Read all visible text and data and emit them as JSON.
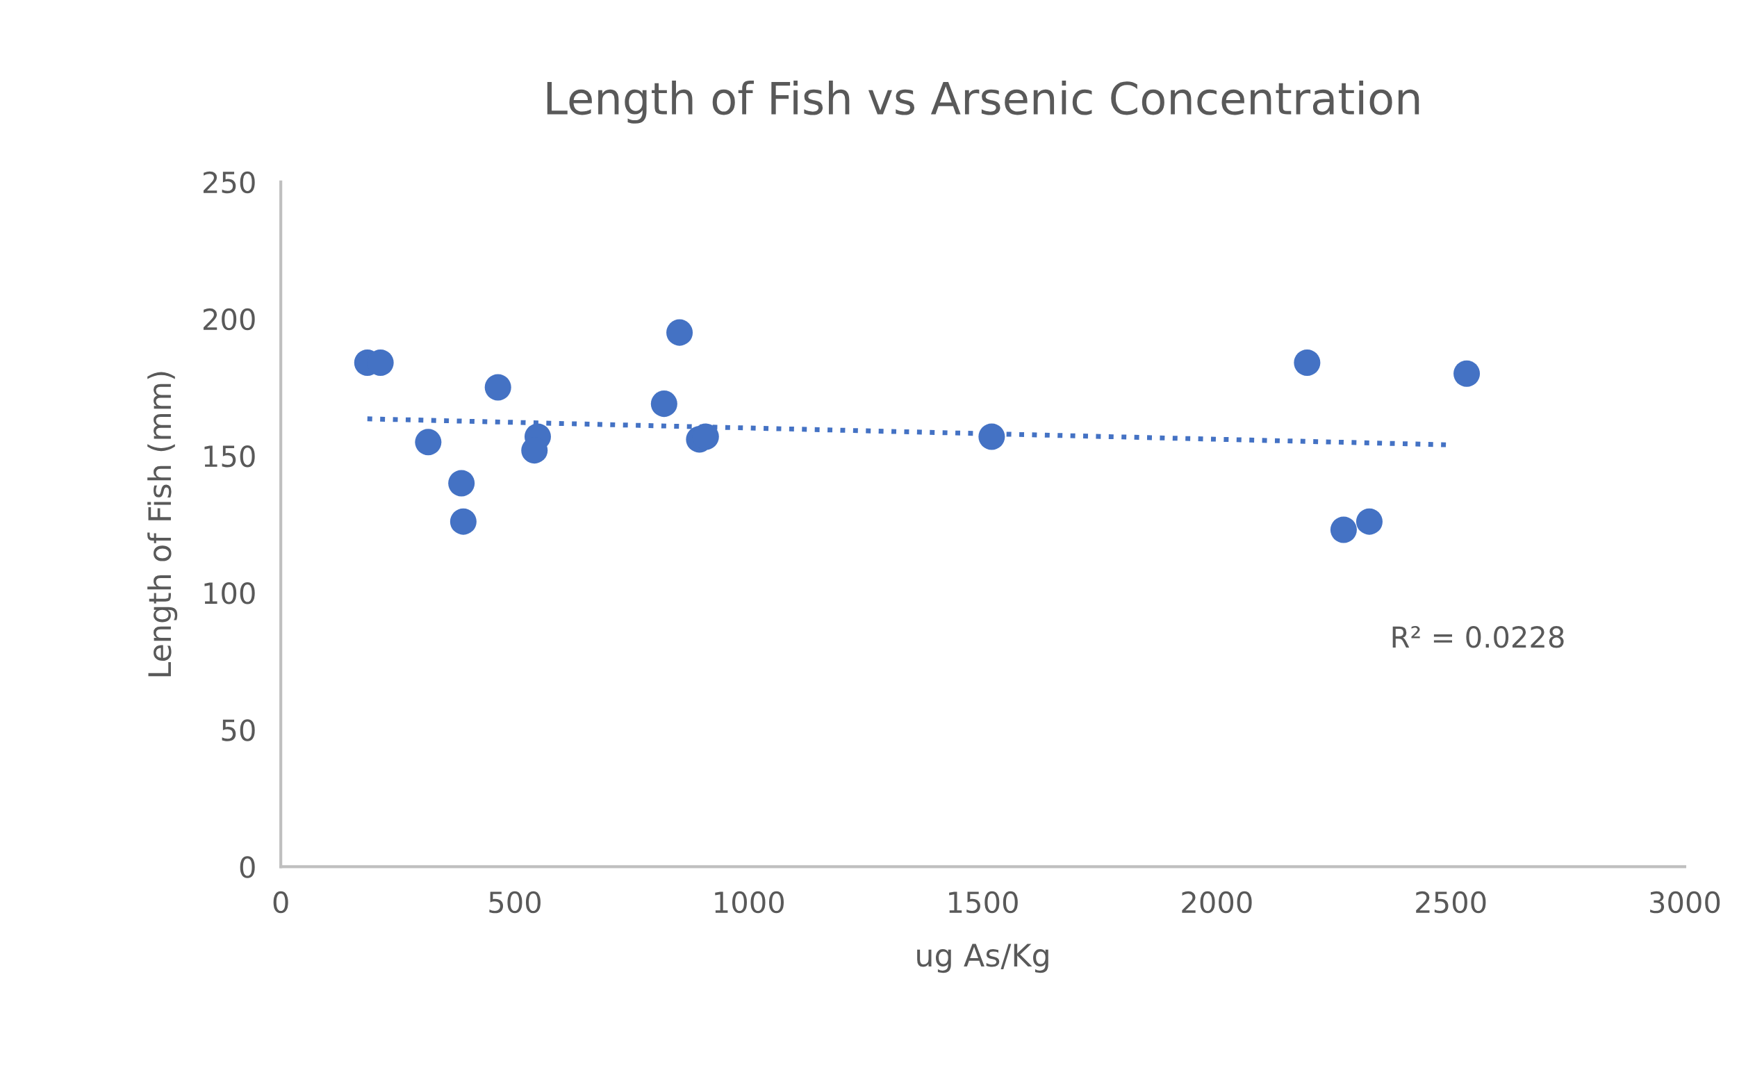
{
  "chart_data": {
    "type": "scatter",
    "title": "Length of Fish vs Arsenic Concentration",
    "xlabel": "ug As/Kg",
    "ylabel": "Length of Fish (mm)",
    "xlim": [
      0,
      3000
    ],
    "xticks": [
      0,
      500,
      1000,
      1500,
      2000,
      2500,
      3000
    ],
    "ylim": [
      0,
      250
    ],
    "yticks": [
      0,
      50,
      100,
      150,
      200,
      250
    ],
    "grid": false,
    "series": [
      {
        "marker": "circle",
        "color": "#4472c4",
        "x": [
          185,
          213,
          315,
          386,
          390,
          464,
          549,
          542,
          819,
          852,
          894,
          908,
          1519,
          2193,
          2271,
          2326,
          2534
        ],
        "values": [
          184,
          184,
          155,
          140,
          126,
          175,
          157,
          152,
          169,
          195,
          156,
          157,
          157,
          184,
          123,
          126,
          180
        ]
      },
      {
        "type": "line",
        "marker": "none",
        "color": "#4472c4",
        "line_style": "dotted",
        "x": [
          185,
          2500
        ],
        "values": [
          163.5,
          154
        ]
      }
    ],
    "annotations": [
      "R² = 0.0228"
    ]
  }
}
